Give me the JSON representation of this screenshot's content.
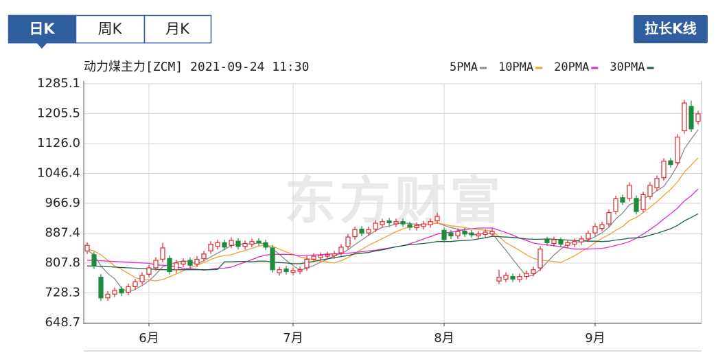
{
  "tabs": [
    "日K",
    "周K",
    "月K"
  ],
  "button": "拉长K线",
  "chart_data": {
    "type": "candlestick",
    "title": "动力煤主力[ZCM] 2021-09-24 11:30",
    "watermark": "东方财富",
    "categories": [
      null,
      null,
      null,
      null,
      null,
      null,
      null,
      null,
      null,
      "6月",
      null,
      null,
      null,
      null,
      null,
      null,
      null,
      null,
      null,
      null,
      null,
      null,
      null,
      null,
      null,
      null,
      null,
      null,
      null,
      null,
      "7月",
      null,
      null,
      null,
      null,
      null,
      null,
      null,
      null,
      null,
      null,
      null,
      null,
      null,
      null,
      null,
      null,
      null,
      null,
      null,
      null,
      null,
      "8月",
      null,
      null,
      null,
      null,
      null,
      null,
      null,
      null,
      null,
      null,
      null,
      null,
      null,
      null,
      null,
      null,
      null,
      null,
      null,
      null,
      null,
      "9月",
      null,
      null,
      null,
      null,
      null,
      null,
      null,
      null,
      null,
      null,
      null,
      null,
      null,
      null,
      null
    ],
    "open": [
      840,
      830,
      770,
      715,
      725,
      738,
      730,
      745,
      758,
      778,
      795,
      818,
      820,
      790,
      805,
      815,
      805,
      820,
      840,
      852,
      862,
      855,
      866,
      852,
      858,
      866,
      862,
      848,
      782,
      792,
      783,
      786,
      795,
      818,
      822,
      826,
      827,
      835,
      852,
      878,
      898,
      888,
      898,
      910,
      920,
      912,
      918,
      910,
      902,
      905,
      910,
      920,
      895,
      888,
      880,
      893,
      888,
      880,
      884,
      885,
      760,
      765,
      772,
      764,
      772,
      780,
      795,
      870,
      860,
      868,
      855,
      858,
      864,
      872,
      888,
      900,
      912,
      945,
      982,
      980,
      980,
      950,
      985,
      1008,
      1035,
      1080,
      1075,
      1160,
      1225,
      1185
    ],
    "high": [
      863,
      838,
      778,
      733,
      743,
      746,
      753,
      766,
      783,
      803,
      823,
      862,
      828,
      816,
      820,
      823,
      826,
      840,
      866,
      870,
      870,
      876,
      874,
      868,
      873,
      874,
      870,
      856,
      798,
      800,
      796,
      798,
      826,
      834,
      836,
      838,
      840,
      858,
      885,
      905,
      906,
      905,
      922,
      926,
      928,
      926,
      926,
      918,
      916,
      920,
      926,
      942,
      903,
      896,
      900,
      901,
      896,
      893,
      898,
      902,
      790,
      783,
      780,
      780,
      788,
      798,
      853,
      878,
      878,
      876,
      870,
      873,
      880,
      895,
      913,
      918,
      950,
      987,
      990,
      1023,
      988,
      998,
      1023,
      1041,
      1087,
      1088,
      1151,
      1242,
      1240,
      1213
    ],
    "low": [
      832,
      792,
      707,
      707,
      717,
      720,
      722,
      737,
      750,
      770,
      787,
      810,
      777,
      782,
      797,
      794,
      797,
      812,
      832,
      844,
      842,
      847,
      844,
      844,
      850,
      854,
      842,
      782,
      774,
      777,
      775,
      778,
      787,
      810,
      814,
      818,
      819,
      827,
      844,
      870,
      879,
      880,
      890,
      902,
      907,
      904,
      904,
      895,
      894,
      897,
      902,
      912,
      862,
      872,
      872,
      877,
      875,
      872,
      876,
      877,
      752,
      757,
      757,
      756,
      764,
      772,
      787,
      854,
      852,
      850,
      847,
      850,
      856,
      864,
      880,
      892,
      904,
      937,
      962,
      972,
      937,
      942,
      977,
      1000,
      1027,
      1062,
      1067,
      1152,
      1157,
      1177
    ],
    "close": [
      855,
      800,
      715,
      725,
      735,
      728,
      745,
      758,
      775,
      795,
      815,
      848,
      785,
      808,
      812,
      802,
      818,
      832,
      858,
      862,
      850,
      868,
      852,
      860,
      865,
      862,
      850,
      790,
      790,
      785,
      788,
      790,
      818,
      826,
      828,
      830,
      832,
      850,
      877,
      897,
      887,
      897,
      914,
      918,
      915,
      918,
      912,
      903,
      908,
      912,
      918,
      932,
      870,
      880,
      892,
      885,
      883,
      885,
      890,
      892,
      770,
      775,
      765,
      772,
      780,
      790,
      845,
      862,
      870,
      858,
      862,
      865,
      872,
      887,
      905,
      910,
      942,
      979,
      970,
      1015,
      945,
      990,
      1015,
      1033,
      1079,
      1070,
      1143,
      1234,
      1165,
      1205
    ],
    "up_color": "#e3232c",
    "down_color": "#1f8a3c",
    "series": [
      {
        "name": "5PMA",
        "color": "#8a8a8a",
        "values": [
          842,
          830,
          800,
          780,
          766,
          741,
          730,
          738,
          748,
          760,
          778,
          798,
          804,
          810,
          814,
          811,
          805,
          814,
          824,
          834,
          844,
          854,
          858,
          858,
          859,
          861,
          858,
          845,
          831,
          815,
          801,
          789,
          794,
          801,
          810,
          818,
          827,
          833,
          843,
          857,
          869,
          882,
          894,
          903,
          906,
          912,
          915,
          913,
          911,
          911,
          911,
          915,
          908,
          902,
          898,
          892,
          882,
          885,
          887,
          887,
          864,
          842,
          818,
          795,
          772,
          776,
          790,
          810,
          829,
          845,
          859,
          863,
          865,
          869,
          878,
          888,
          903,
          925,
          941,
          963,
          970,
          980,
          987,
          1000,
          1012,
          1037,
          1068,
          1112,
          1138,
          1163
        ]
      },
      {
        "name": "10PMA",
        "color": "#f0a12e",
        "values": [
          845,
          840,
          830,
          815,
          800,
          791,
          780,
          769,
          764,
          763,
          760,
          764,
          771,
          779,
          787,
          795,
          802,
          809,
          817,
          824,
          828,
          830,
          836,
          841,
          847,
          853,
          856,
          852,
          845,
          837,
          831,
          824,
          820,
          816,
          813,
          810,
          808,
          814,
          822,
          834,
          844,
          855,
          864,
          873,
          882,
          891,
          899,
          904,
          907,
          909,
          912,
          915,
          911,
          907,
          905,
          902,
          899,
          897,
          895,
          893,
          878,
          862,
          852,
          841,
          830,
          820,
          816,
          814,
          812,
          809,
          818,
          827,
          838,
          849,
          862,
          874,
          883,
          895,
          905,
          921,
          929,
          942,
          956,
          971,
          988,
          1004,
          1024,
          1050,
          1069,
          1088
        ]
      },
      {
        "name": "20PMA",
        "color": "#e02bc8",
        "values": [
          815,
          815,
          814,
          813,
          812,
          811,
          810,
          809,
          808,
          807,
          803,
          802,
          801,
          797,
          794,
          793,
          791,
          789,
          791,
          794,
          794,
          797,
          804,
          810,
          817,
          824,
          829,
          831,
          831,
          831,
          830,
          827,
          828,
          829,
          830,
          832,
          832,
          833,
          834,
          836,
          838,
          840,
          842,
          845,
          848,
          851,
          854,
          859,
          865,
          872,
          878,
          885,
          888,
          890,
          894,
          897,
          899,
          901,
          901,
          901,
          895,
          889,
          882,
          874,
          868,
          861,
          858,
          856,
          854,
          851,
          848,
          845,
          845,
          845,
          846,
          847,
          850,
          855,
          859,
          865,
          874,
          885,
          897,
          910,
          925,
          939,
          954,
          973,
          987,
          1005
        ]
      },
      {
        "name": "30PMA",
        "color": "#1b5e40",
        "values": [
          800,
          800,
          799,
          798,
          797,
          796,
          795,
          794,
          793,
          792,
          791,
          790,
          790,
          790,
          790,
          790,
          790,
          790,
          790,
          791,
          811,
          811,
          812,
          812,
          811,
          813,
          813,
          810,
          809,
          808,
          806,
          806,
          809,
          812,
          816,
          819,
          822,
          825,
          828,
          832,
          834,
          836,
          840,
          843,
          847,
          851,
          854,
          857,
          858,
          860,
          862,
          865,
          865,
          865,
          867,
          868,
          869,
          872,
          875,
          879,
          878,
          877,
          876,
          874,
          872,
          871,
          871,
          872,
          871,
          870,
          869,
          868,
          867,
          866,
          866,
          865,
          866,
          869,
          871,
          874,
          875,
          877,
          882,
          887,
          893,
          899,
          908,
          920,
          929,
          939
        ]
      }
    ],
    "ylim": [
      648.7,
      1285.1
    ],
    "yticks": [
      648.7,
      728.3,
      807.8,
      887.4,
      966.9,
      {
        "value": 1046.4,
        "label": "1046.4"
      },
      {
        "value": 1126,
        "label": "1126.0"
      },
      1205.5,
      1285.1
    ],
    "grid": true
  }
}
